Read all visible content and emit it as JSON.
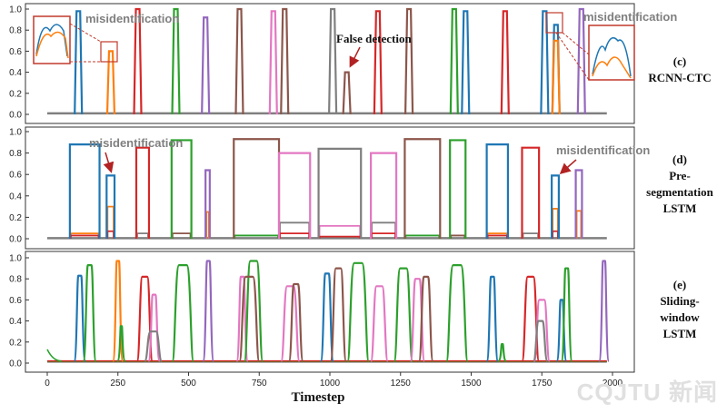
{
  "colors": {
    "blue": "#1f77b4",
    "orange": "#ff7f0e",
    "green": "#2ca02c",
    "red": "#d62728",
    "purple": "#9467bd",
    "brown": "#8c564b",
    "pink": "#e377c2",
    "gray": "#7f7f7f",
    "arrow": "#b22222"
  },
  "chart_data": [
    {
      "type": "line",
      "panel_label": [
        "(c)",
        "RCNN-CTC"
      ],
      "ylim": [
        0,
        1.0
      ],
      "yticks": [
        "0.0",
        "0.2",
        "0.4",
        "0.6",
        "0.8",
        "1.0"
      ],
      "xlim": [
        -80,
        2080
      ],
      "annotations": [
        "misidentification",
        "misidentification",
        "False detection"
      ],
      "series": [
        {
          "color": "blue",
          "x": [
            110,
            1480,
            1760,
            1800
          ],
          "values": [
            0.98,
            0.98,
            0.98,
            0.85
          ]
        },
        {
          "color": "orange",
          "x": [
            225,
            1800
          ],
          "values": [
            0.6,
            0.7
          ]
        },
        {
          "color": "red",
          "x": [
            320,
            1170,
            1620
          ],
          "values": [
            1.0,
            0.98,
            0.98
          ]
        },
        {
          "color": "green",
          "x": [
            455,
            1440
          ],
          "values": [
            1.0,
            1.0
          ]
        },
        {
          "color": "purple",
          "x": [
            560,
            1890
          ],
          "values": [
            0.92,
            1.0
          ]
        },
        {
          "color": "brown",
          "x": [
            680,
            840,
            1060,
            1280
          ],
          "values": [
            1.0,
            1.0,
            0.4,
            1.0
          ]
        },
        {
          "color": "pink",
          "x": [
            800
          ],
          "values": [
            0.98
          ]
        },
        {
          "color": "gray",
          "x": [
            1010
          ],
          "values": [
            1.0
          ]
        }
      ]
    },
    {
      "type": "line",
      "panel_label": [
        "(d)",
        "Pre-",
        "segmentation",
        "LSTM"
      ],
      "ylim": [
        0,
        1.0
      ],
      "yticks": [
        "0.0",
        "0.2",
        "0.4",
        "0.6",
        "0.8",
        "1.0"
      ],
      "xlim": [
        -80,
        2080
      ],
      "annotations": [
        "misidentification",
        "misidentification"
      ],
      "segments": [
        {
          "start": 80,
          "end": 185,
          "color": "blue",
          "height": 0.88,
          "minors": [
            {
              "color": "orange",
              "height": 0.05
            },
            {
              "color": "red",
              "height": 0.03
            }
          ]
        },
        {
          "start": 210,
          "end": 238,
          "color": "blue",
          "height": 0.59,
          "minors": [
            {
              "color": "orange",
              "height": 0.3
            },
            {
              "color": "red",
              "height": 0.07
            }
          ]
        },
        {
          "start": 315,
          "end": 360,
          "color": "red",
          "height": 0.85,
          "minors": [
            {
              "color": "gray",
              "height": 0.05
            }
          ]
        },
        {
          "start": 440,
          "end": 510,
          "color": "green",
          "height": 0.92,
          "minors": [
            {
              "color": "brown",
              "height": 0.05
            }
          ]
        },
        {
          "start": 560,
          "end": 575,
          "color": "purple",
          "height": 0.64,
          "minors": [
            {
              "color": "orange",
              "height": 0.25
            }
          ]
        },
        {
          "start": 660,
          "end": 820,
          "color": "brown",
          "height": 0.93,
          "minors": [
            {
              "color": "green",
              "height": 0.03
            }
          ]
        },
        {
          "start": 820,
          "end": 930,
          "color": "pink",
          "height": 0.8,
          "minors": [
            {
              "color": "gray",
              "height": 0.15
            },
            {
              "color": "red",
              "height": 0.05
            }
          ]
        },
        {
          "start": 960,
          "end": 1110,
          "color": "gray",
          "height": 0.84,
          "minors": [
            {
              "color": "pink",
              "height": 0.12
            },
            {
              "color": "red",
              "height": 0.02
            }
          ]
        },
        {
          "start": 1145,
          "end": 1235,
          "color": "pink",
          "height": 0.8,
          "minors": [
            {
              "color": "gray",
              "height": 0.15
            },
            {
              "color": "red",
              "height": 0.05
            }
          ]
        },
        {
          "start": 1265,
          "end": 1390,
          "color": "brown",
          "height": 0.93,
          "minors": [
            {
              "color": "green",
              "height": 0.03
            }
          ]
        },
        {
          "start": 1425,
          "end": 1480,
          "color": "green",
          "height": 0.92,
          "minors": [
            {
              "color": "brown",
              "height": 0.03
            }
          ]
        },
        {
          "start": 1555,
          "end": 1630,
          "color": "blue",
          "height": 0.88,
          "minors": [
            {
              "color": "orange",
              "height": 0.05
            },
            {
              "color": "red",
              "height": 0.03
            }
          ]
        },
        {
          "start": 1680,
          "end": 1740,
          "color": "red",
          "height": 0.85,
          "minors": [
            {
              "color": "gray",
              "height": 0.05
            }
          ]
        },
        {
          "start": 1785,
          "end": 1810,
          "color": "blue",
          "height": 0.59,
          "minors": [
            {
              "color": "orange",
              "height": 0.28
            },
            {
              "color": "red",
              "height": 0.07
            }
          ]
        },
        {
          "start": 1870,
          "end": 1892,
          "color": "purple",
          "height": 0.64,
          "minors": [
            {
              "color": "orange",
              "height": 0.26
            }
          ]
        }
      ]
    },
    {
      "type": "line",
      "panel_label": [
        "(e)",
        "Sliding-",
        "window",
        "LSTM"
      ],
      "ylim": [
        0,
        1.0
      ],
      "yticks": [
        "0.0",
        "0.2",
        "0.4",
        "0.6",
        "0.8",
        "1.0"
      ],
      "xlim": [
        -80,
        2080
      ],
      "xticks": [
        0,
        250,
        500,
        750,
        1000,
        1250,
        1500,
        1750,
        2000
      ],
      "xticklabels": [
        "0",
        "250",
        "500",
        "750",
        "1000",
        "1250",
        "1500",
        "1750",
        "2000"
      ],
      "xlabel": "Timestep",
      "peaks": [
        {
          "x": 115,
          "color": "blue",
          "height": 0.83,
          "width": 20
        },
        {
          "x": 150,
          "color": "green",
          "height": 0.93,
          "width": 25
        },
        {
          "x": 250,
          "color": "orange",
          "height": 0.97,
          "width": 16
        },
        {
          "x": 262,
          "color": "green",
          "height": 0.35,
          "width": 8
        },
        {
          "x": 345,
          "color": "red",
          "height": 0.82,
          "width": 35
        },
        {
          "x": 378,
          "color": "pink",
          "height": 0.65,
          "width": 20
        },
        {
          "x": 375,
          "color": "gray",
          "height": 0.3,
          "width": 40
        },
        {
          "x": 480,
          "color": "green",
          "height": 0.93,
          "width": 55
        },
        {
          "x": 570,
          "color": "purple",
          "height": 0.97,
          "width": 18
        },
        {
          "x": 690,
          "color": "pink",
          "height": 0.82,
          "width": 20
        },
        {
          "x": 730,
          "color": "green",
          "height": 0.97,
          "width": 45
        },
        {
          "x": 715,
          "color": "brown",
          "height": 0.82,
          "width": 50
        },
        {
          "x": 860,
          "color": "pink",
          "height": 0.73,
          "width": 45
        },
        {
          "x": 880,
          "color": "brown",
          "height": 0.75,
          "width": 30
        },
        {
          "x": 990,
          "color": "blue",
          "height": 0.85,
          "width": 25
        },
        {
          "x": 1030,
          "color": "brown",
          "height": 0.9,
          "width": 35
        },
        {
          "x": 1100,
          "color": "green",
          "height": 0.95,
          "width": 55
        },
        {
          "x": 1175,
          "color": "pink",
          "height": 0.73,
          "width": 40
        },
        {
          "x": 1260,
          "color": "green",
          "height": 0.9,
          "width": 45
        },
        {
          "x": 1310,
          "color": "pink",
          "height": 0.8,
          "width": 30
        },
        {
          "x": 1340,
          "color": "brown",
          "height": 0.82,
          "width": 30
        },
        {
          "x": 1450,
          "color": "green",
          "height": 0.93,
          "width": 55
        },
        {
          "x": 1575,
          "color": "blue",
          "height": 0.82,
          "width": 20
        },
        {
          "x": 1610,
          "color": "green",
          "height": 0.18,
          "width": 8
        },
        {
          "x": 1710,
          "color": "red",
          "height": 0.82,
          "width": 40
        },
        {
          "x": 1750,
          "color": "pink",
          "height": 0.6,
          "width": 35
        },
        {
          "x": 1745,
          "color": "gray",
          "height": 0.4,
          "width": 30
        },
        {
          "x": 1820,
          "color": "blue",
          "height": 0.6,
          "width": 15
        },
        {
          "x": 1838,
          "color": "green",
          "height": 0.9,
          "width": 18
        },
        {
          "x": 1970,
          "color": "purple",
          "height": 0.97,
          "width": 15
        }
      ]
    }
  ],
  "watermark": "CQJTU 新闻"
}
